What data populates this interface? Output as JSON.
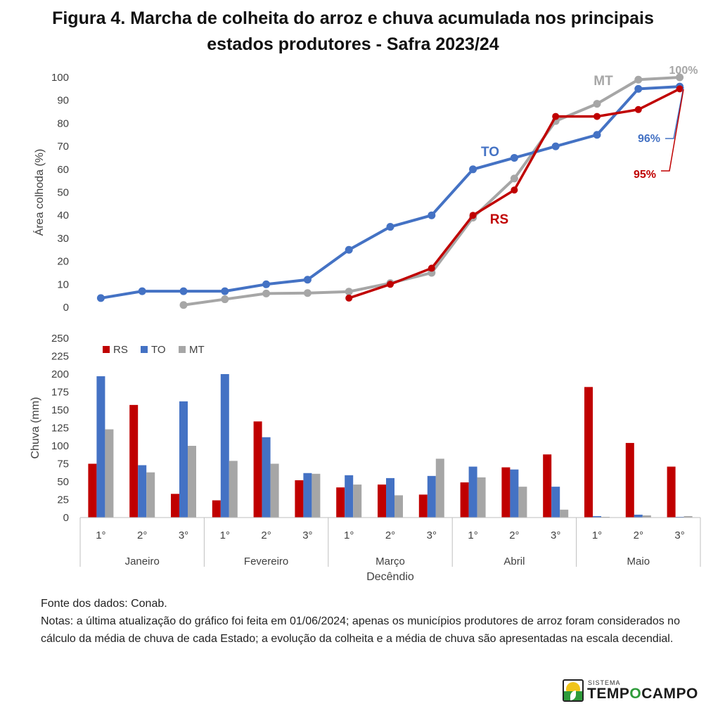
{
  "title": {
    "line1": "Figura 4. Marcha de colheita do arroz e chuva acumulada nos principais",
    "line2": "estados produtores - Safra 2023/24"
  },
  "colors": {
    "RS": "#c00000",
    "TO": "#4472c4",
    "MT": "#a6a6a6"
  },
  "chart_data": [
    {
      "type": "line",
      "ylabel": "Área colhoda (%)",
      "ylim": [
        0,
        100
      ],
      "yticks": [
        0,
        10,
        20,
        30,
        40,
        50,
        60,
        70,
        80,
        90,
        100
      ],
      "grid": false,
      "x": [
        "Jan 1°",
        "Jan 2°",
        "Jan 3°",
        "Fev 1°",
        "Fev 2°",
        "Fev 3°",
        "Mar 1°",
        "Mar 2°",
        "Mar 3°",
        "Abr 1°",
        "Abr 2°",
        "Abr 3°",
        "Mai 1°",
        "Mai 2°",
        "Mai 3°"
      ],
      "series": [
        {
          "name": "MT",
          "color": "#a6a6a6",
          "values": [
            null,
            null,
            1,
            3.5,
            6,
            6.2,
            6.8,
            10.5,
            15,
            39,
            56,
            81,
            88.5,
            99,
            100
          ]
        },
        {
          "name": "TO",
          "color": "#4472c4",
          "values": [
            4,
            7,
            7,
            7,
            10,
            12,
            25,
            35,
            40,
            60,
            65,
            70,
            75,
            95,
            96
          ]
        },
        {
          "name": "RS",
          "color": "#c00000",
          "values": [
            null,
            null,
            null,
            null,
            null,
            null,
            4,
            10,
            17,
            40,
            51,
            83,
            83,
            86,
            95
          ]
        }
      ],
      "annotations": {
        "MT_label": "MT",
        "MT_end": "100%",
        "TO_label": "TO",
        "TO_end": "96%",
        "RS_label": "RS",
        "RS_end": "95%"
      }
    },
    {
      "type": "bar",
      "ylabel": "Chuva (mm)",
      "xlabel": "Decêndio",
      "ylim": [
        0,
        250
      ],
      "yticks": [
        0,
        25,
        50,
        75,
        100,
        125,
        150,
        175,
        200,
        225,
        250
      ],
      "legend": "top-left",
      "grid": false,
      "categories": [
        "1°",
        "2°",
        "3°",
        "1°",
        "2°",
        "3°",
        "1°",
        "2°",
        "3°",
        "1°",
        "2°",
        "3°",
        "1°",
        "2°",
        "3°"
      ],
      "months": [
        "Janeiro",
        "Fevereiro",
        "Março",
        "Abril",
        "Maio"
      ],
      "series": [
        {
          "name": "RS",
          "color": "#c00000",
          "values": [
            75,
            157,
            33,
            24,
            134,
            52,
            42,
            46,
            32,
            49,
            70,
            88,
            182,
            104,
            71
          ]
        },
        {
          "name": "TO",
          "color": "#4472c4",
          "values": [
            197,
            73,
            162,
            200,
            112,
            62,
            59,
            55,
            58,
            71,
            67,
            43,
            2,
            4,
            1
          ]
        },
        {
          "name": "MT",
          "color": "#a6a6a6",
          "values": [
            123,
            63,
            100,
            79,
            75,
            61,
            46,
            31,
            82,
            56,
            43,
            11,
            1,
            3,
            2
          ]
        }
      ]
    }
  ],
  "notes": {
    "source": "Fonte dos dados: Conab.",
    "text": "Notas: a última atualização do gráfico foi feita em 01/06/2024; apenas os municípios produtores de arroz foram considerados no cálculo da média de chuva de cada Estado; a evolução da colheita e a média de chuva são apresentadas na escala decendial."
  },
  "logo": {
    "small_text": "SISTEMA",
    "brand_a": "TEMP",
    "brand_o": "O",
    "brand_b": "CAMPO",
    "icon": "sun-field-logo-icon"
  }
}
